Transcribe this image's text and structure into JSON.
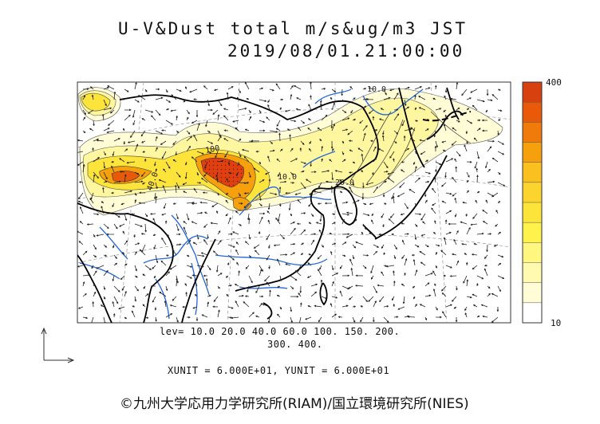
{
  "title": {
    "line1": "U-V&Dust total m/s&ug/m3 JST",
    "line2": "2019/08/01.21:00:00"
  },
  "legend": {
    "lev_line1": "lev= 10.0 20.0 40.0 60.0 100. 150. 200.",
    "lev_line2": "300. 400.",
    "units": "XUNIT = 6.000E+01, YUNIT = 6.000E+01",
    "colorbar_max": "400",
    "colorbar_min": "10",
    "colorbar_colors": [
      "#d94010",
      "#e85a0a",
      "#f07a0a",
      "#f6a00e",
      "#f9c020",
      "#fbd52e",
      "#fde43a",
      "#fff24c",
      "#fff780",
      "#fffab0",
      "#fffcd6",
      "#ffffff"
    ]
  },
  "contour_labels": [
    "10.0",
    "40.0",
    "100",
    "20.0",
    "10.0"
  ],
  "credit": "©九州大学応用力学研究所(RIAM)/国立環境研究所(NIES)",
  "colors": {
    "coast": "#000000",
    "river": "#2266dd",
    "grid": "#888888"
  }
}
